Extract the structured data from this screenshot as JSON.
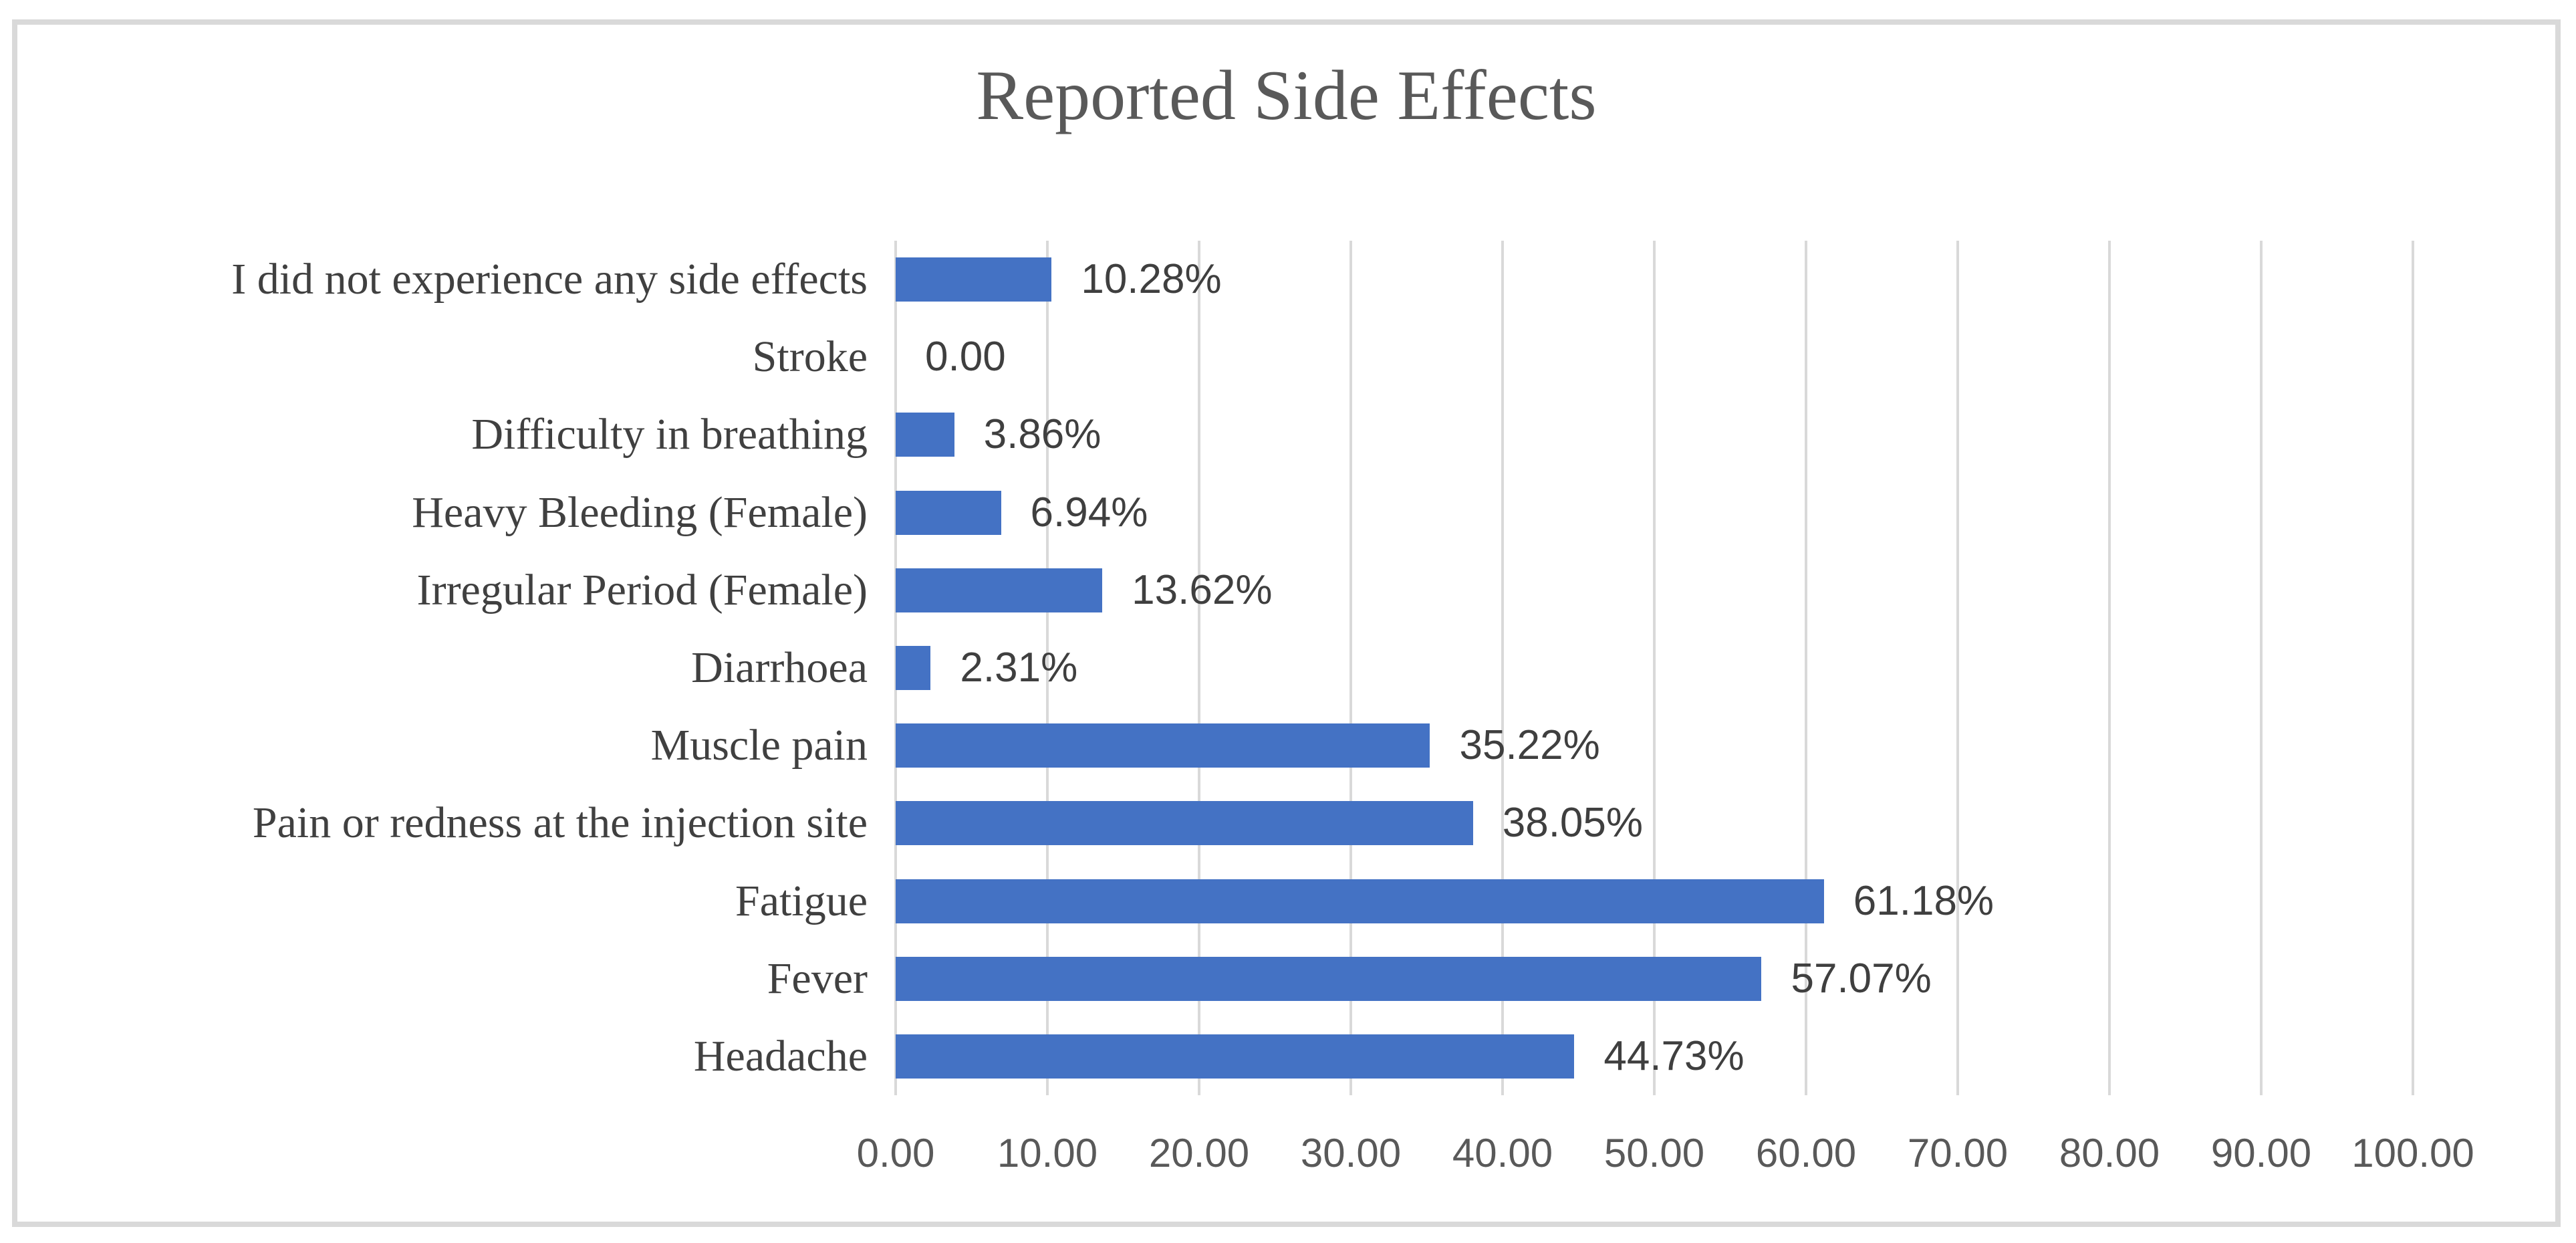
{
  "figure": {
    "background": "#ffffff",
    "frame_border_color": "#d9d9d9"
  },
  "chart_data": {
    "type": "bar",
    "orientation": "horizontal",
    "title": "Reported Side Effects",
    "categories": [
      "I did not experience any side effects",
      "Stroke",
      "Difficulty in breathing",
      "Heavy Bleeding (Female)",
      "Irregular Period (Female)",
      "Diarrhoea",
      "Muscle pain",
      "Pain or redness at the injection site",
      "Fatigue",
      "Fever",
      "Headache"
    ],
    "values": [
      10.28,
      0.0,
      3.86,
      6.94,
      13.62,
      2.31,
      35.22,
      38.05,
      61.18,
      57.07,
      44.73
    ],
    "data_labels": [
      "10.28%",
      "0.00",
      "3.86%",
      "6.94%",
      "13.62%",
      "2.31%",
      "35.22%",
      "38.05%",
      "61.18%",
      "57.07%",
      "44.73%"
    ],
    "xlabel": "",
    "ylabel": "",
    "xlim": [
      0,
      100
    ],
    "x_tick_step": 10,
    "x_ticks": [
      "0.00",
      "10.00",
      "20.00",
      "30.00",
      "40.00",
      "50.00",
      "60.00",
      "70.00",
      "80.00",
      "90.00",
      "100.00"
    ],
    "grid": "vertical-gridlines-on",
    "legend": "none",
    "colors": {
      "bar": "#4472c4",
      "gridline": "#d9d9d9",
      "title_text": "#595959",
      "category_text": "#404040",
      "value_text": "#3f3f3f",
      "tick_text": "#595959"
    }
  }
}
